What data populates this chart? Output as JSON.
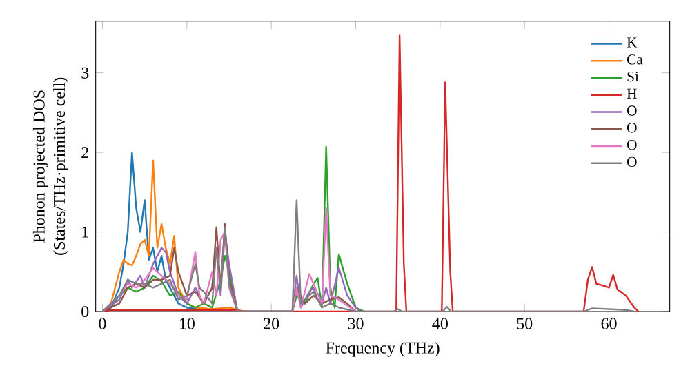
{
  "chart_data": {
    "type": "line",
    "xlabel": "Frequency (THz)",
    "ylabel": "Phonon projected DOS\n(States/THz·primitive cell)",
    "xlim": [
      -0.8,
      67.2
    ],
    "ylim": [
      0,
      3.65
    ],
    "xticks": [
      0,
      10,
      20,
      30,
      40,
      50,
      60
    ],
    "yticks": [
      0,
      1,
      2,
      3
    ],
    "grid": false,
    "legend": "top right",
    "marker": "none",
    "line_style": "solid",
    "series": [
      {
        "name": "K",
        "color": "#1f77b4",
        "x": [
          0,
          1,
          2,
          2.5,
          3,
          3.5,
          4,
          4.5,
          5,
          5.5,
          6,
          6.5,
          7,
          7.5,
          8,
          9,
          10,
          12,
          16
        ],
        "values": [
          0,
          0.05,
          0.3,
          0.6,
          1.0,
          2.0,
          1.3,
          1.0,
          1.4,
          0.65,
          0.8,
          0.5,
          0.7,
          0.4,
          0.3,
          0.1,
          0.05,
          0.02,
          0.02
        ]
      },
      {
        "name": "Ca",
        "color": "#ff7f0e",
        "x": [
          0,
          1,
          2,
          2.5,
          3,
          3.5,
          4,
          4.5,
          5,
          5.5,
          6,
          6.5,
          7,
          7.5,
          8,
          8.5,
          9,
          10,
          11,
          13,
          15,
          16,
          17
        ],
        "values": [
          0,
          0.1,
          0.5,
          0.65,
          0.6,
          0.58,
          0.7,
          0.85,
          0.9,
          0.7,
          1.9,
          0.8,
          1.1,
          0.8,
          0.6,
          0.95,
          0.3,
          0.1,
          0.05,
          0.03,
          0.05,
          0.02,
          0
        ]
      },
      {
        "name": "Si",
        "color": "#2ca02c",
        "x": [
          0,
          1,
          2,
          3,
          4,
          5,
          6,
          7,
          8,
          9,
          10,
          11,
          12,
          13,
          14,
          14.5,
          15,
          16,
          22.5,
          23,
          24,
          25,
          25.5,
          26,
          26.5,
          27,
          27.5,
          28,
          29,
          30,
          31
        ],
        "values": [
          0,
          0.05,
          0.2,
          0.3,
          0.25,
          0.3,
          0.45,
          0.38,
          0.2,
          0.25,
          0.1,
          0.05,
          0.1,
          0.05,
          0.4,
          0.7,
          0.5,
          0,
          0,
          0.2,
          0.1,
          0.35,
          0.42,
          0.05,
          2.07,
          0.3,
          0.05,
          0.72,
          0.35,
          0.05,
          0
        ]
      },
      {
        "name": "H",
        "color": "#d62728",
        "x": [
          0,
          1,
          5,
          10,
          16,
          16.5,
          34.8,
          35.2,
          35.7,
          36,
          40.2,
          40.6,
          41.2,
          41.5,
          57,
          57.5,
          58,
          58.5,
          59.5,
          60,
          60.5,
          61,
          62,
          63,
          63.5
        ],
        "values": [
          0,
          0.02,
          0.02,
          0.02,
          0.02,
          0,
          0,
          3.47,
          0.6,
          0,
          0,
          2.88,
          0.5,
          0,
          0,
          0.4,
          0.56,
          0.35,
          0.32,
          0.3,
          0.46,
          0.28,
          0.2,
          0.05,
          0
        ]
      },
      {
        "name": "O",
        "color": "#9467bd",
        "x": [
          0,
          2,
          3,
          3.5,
          4.5,
          5,
          6,
          7,
          7.5,
          8,
          9,
          10,
          11,
          12,
          13,
          13.5,
          14,
          14.5,
          15,
          16,
          22.5,
          23,
          23.5,
          24.5,
          25,
          25.5,
          26,
          26.5,
          27,
          28,
          29,
          30,
          30.5
        ],
        "values": [
          0,
          0.15,
          0.4,
          0.3,
          0.45,
          0.3,
          0.6,
          0.8,
          0.75,
          0.5,
          0.2,
          0.1,
          0.3,
          0.1,
          0.3,
          0.8,
          0.2,
          1.0,
          0.6,
          0,
          0,
          0.45,
          0.05,
          0.25,
          0.3,
          0.15,
          0.1,
          0.3,
          0.1,
          0.55,
          0.2,
          0.05,
          0
        ]
      },
      {
        "name": "O",
        "color": "#8c564b",
        "x": [
          0,
          2,
          3,
          4,
          5,
          6,
          7,
          8,
          8.5,
          9,
          10,
          11,
          12,
          13,
          13.5,
          14,
          14.5,
          15,
          16,
          22.5,
          23,
          24,
          25,
          26,
          27,
          28,
          29,
          30
        ],
        "values": [
          0,
          0.1,
          0.3,
          0.35,
          0.3,
          0.4,
          0.4,
          0.45,
          0.8,
          0.5,
          0.2,
          0.25,
          0.1,
          0.3,
          1.06,
          0.3,
          1.1,
          0.4,
          0,
          0,
          0.3,
          0.1,
          0.2,
          0.1,
          0.15,
          0.18,
          0.1,
          0
        ]
      },
      {
        "name": "O",
        "color": "#e377c2",
        "x": [
          0,
          2,
          3,
          4,
          5,
          6,
          7,
          8,
          9,
          10,
          11,
          11.5,
          12,
          13,
          13.5,
          14,
          14.5,
          15,
          16,
          22.5,
          23,
          23.5,
          24.5,
          25,
          26,
          26.5,
          27,
          28,
          30
        ],
        "values": [
          0,
          0.2,
          0.35,
          0.3,
          0.4,
          0.55,
          0.45,
          0.35,
          0.2,
          0.15,
          0.75,
          0.2,
          0.1,
          0.5,
          0.2,
          0.9,
          1.0,
          0.3,
          0,
          0,
          0.3,
          0.05,
          0.47,
          0.35,
          0.1,
          1.3,
          0.2,
          0.15,
          0
        ]
      },
      {
        "name": "O",
        "color": "#7f7f7f",
        "x": [
          0,
          2,
          3,
          4,
          5,
          6,
          7,
          8,
          9,
          10,
          11,
          11.5,
          12,
          13,
          13.5,
          14,
          14.5,
          15,
          16,
          22.5,
          23,
          23.5,
          24.5,
          25,
          26,
          27,
          28,
          30,
          34.5,
          35,
          35.5,
          40.3,
          40.8,
          41.3,
          57,
          58,
          62,
          63
        ],
        "values": [
          0,
          0.2,
          0.4,
          0.35,
          0.35,
          0.3,
          0.35,
          0.4,
          0.15,
          0.2,
          0.6,
          0.3,
          0.25,
          0.1,
          0.8,
          0.3,
          1.05,
          0.35,
          0,
          0,
          1.4,
          0.1,
          0.2,
          0.25,
          0.05,
          0.1,
          0.05,
          0,
          0,
          0.03,
          0,
          0,
          0.06,
          0,
          0,
          0.04,
          0.02,
          0
        ]
      }
    ]
  }
}
